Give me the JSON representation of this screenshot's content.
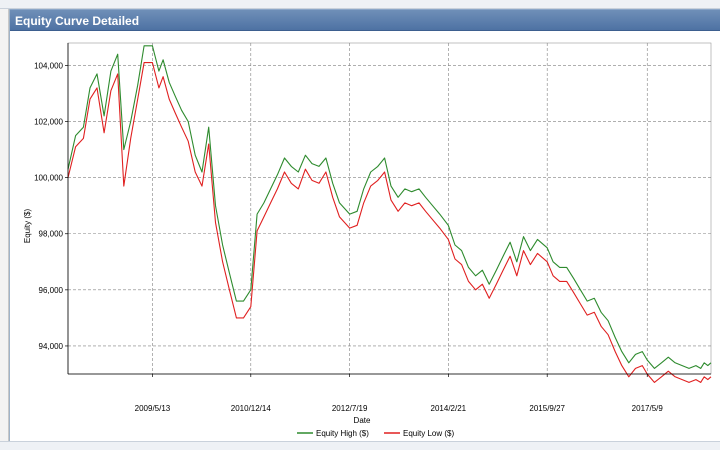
{
  "window": {
    "panel_title": "Equity Curve Detailed"
  },
  "colors": {
    "title_bar": "#4e72a3",
    "equity_high": "#2e8b2e",
    "equity_low": "#e02020",
    "grid": "#808080"
  },
  "chart_data": {
    "type": "line",
    "title": "",
    "xlabel": "Date",
    "ylabel": "Equity ($)",
    "x_tick_labels": [
      "2009/5/13",
      "2010/12/14",
      "2012/7/19",
      "2014/2/21",
      "2015/9/27",
      "2017/5/9"
    ],
    "y_ticks": [
      94000,
      96000,
      98000,
      100000,
      102000,
      104000
    ],
    "y_tick_labels": [
      "94,000",
      "96,000",
      "98,000",
      "100,000",
      "102,000",
      "104,000"
    ],
    "ylim": [
      93000,
      104800
    ],
    "legend": {
      "placement": "bottom-center"
    },
    "grid": true,
    "series": [
      {
        "name": "Equity High ($)",
        "x": [
          "2008/1/1",
          "2008/2/15",
          "2008/4/1",
          "2008/5/10",
          "2008/6/20",
          "2008/8/1",
          "2008/9/10",
          "2008/10/20",
          "2008/11/25",
          "2009/1/5",
          "2009/2/15",
          "2009/3/25",
          "2009/5/13",
          "2009/6/20",
          "2009/7/15",
          "2009/8/20",
          "2009/9/25",
          "2009/11/1",
          "2009/12/10",
          "2010/1/20",
          "2010/3/1",
          "2010/4/10",
          "2010/5/20",
          "2010/7/1",
          "2010/8/10",
          "2010/9/20",
          "2010/11/1",
          "2010/12/14",
          "2011/1/20",
          "2011/3/1",
          "2011/4/10",
          "2011/5/20",
          "2011/7/1",
          "2011/8/10",
          "2011/9/20",
          "2011/11/1",
          "2011/12/10",
          "2012/1/20",
          "2012/3/1",
          "2012/4/10",
          "2012/5/20",
          "2012/7/19",
          "2012/9/1",
          "2012/10/10",
          "2012/11/20",
          "2013/1/1",
          "2013/2/10",
          "2013/3/20",
          "2013/5/1",
          "2013/6/10",
          "2013/7/20",
          "2013/9/1",
          "2013/10/10",
          "2013/11/20",
          "2014/1/1",
          "2014/2/21",
          "2014/4/1",
          "2014/5/10",
          "2014/6/20",
          "2014/8/1",
          "2014/9/10",
          "2014/10/20",
          "2014/12/1",
          "2015/1/10",
          "2015/2/20",
          "2015/4/1",
          "2015/5/10",
          "2015/6/20",
          "2015/8/1",
          "2015/9/27",
          "2015/11/1",
          "2015/12/10",
          "2016/1/20",
          "2016/3/1",
          "2016/4/10",
          "2016/5/20",
          "2016/7/1",
          "2016/8/10",
          "2016/9/20",
          "2016/11/1",
          "2016/12/10",
          "2017/1/20",
          "2017/3/1",
          "2017/4/10",
          "2017/5/9",
          "2017/6/20",
          "2017/8/1",
          "2017/9/10",
          "2017/10/20",
          "2017/12/1",
          "2018/1/10",
          "2018/2/20",
          "2018/3/20",
          "2018/4/10",
          "2018/5/1",
          "2018/5/20"
        ],
        "values": [
          100300,
          101500,
          101800,
          103200,
          103700,
          102200,
          103800,
          104400,
          101000,
          102000,
          103300,
          104700,
          104700,
          103800,
          104200,
          103400,
          102900,
          102400,
          102000,
          100800,
          100200,
          101800,
          99000,
          97600,
          96600,
          95600,
          95600,
          96000,
          98700,
          99100,
          99600,
          100100,
          100700,
          100400,
          100200,
          100800,
          100500,
          100400,
          100700,
          99800,
          99100,
          98700,
          98800,
          99600,
          100200,
          100400,
          100700,
          99700,
          99300,
          99600,
          99500,
          99600,
          99300,
          99000,
          98700,
          98300,
          97600,
          97400,
          96800,
          96500,
          96700,
          96200,
          96700,
          97200,
          97700,
          97000,
          97900,
          97400,
          97800,
          97500,
          97000,
          96800,
          96800,
          96400,
          96000,
          95600,
          95700,
          95200,
          94900,
          94300,
          93800,
          93400,
          93700,
          93800,
          93500,
          93200,
          93400,
          93600,
          93400,
          93300,
          93200,
          93300,
          93200,
          93400,
          93300,
          93400
        ]
      },
      {
        "name": "Equity Low ($)",
        "x": [
          "2008/1/1",
          "2008/2/15",
          "2008/4/1",
          "2008/5/10",
          "2008/6/20",
          "2008/8/1",
          "2008/9/10",
          "2008/10/20",
          "2008/11/25",
          "2009/1/5",
          "2009/2/15",
          "2009/3/25",
          "2009/5/13",
          "2009/6/20",
          "2009/7/15",
          "2009/8/20",
          "2009/9/25",
          "2009/11/1",
          "2009/12/10",
          "2010/1/20",
          "2010/3/1",
          "2010/4/10",
          "2010/5/20",
          "2010/7/1",
          "2010/8/10",
          "2010/9/20",
          "2010/11/1",
          "2010/12/14",
          "2011/1/20",
          "2011/3/1",
          "2011/4/10",
          "2011/5/20",
          "2011/7/1",
          "2011/8/10",
          "2011/9/20",
          "2011/11/1",
          "2011/12/10",
          "2012/1/20",
          "2012/3/1",
          "2012/4/10",
          "2012/5/20",
          "2012/7/19",
          "2012/9/1",
          "2012/10/10",
          "2012/11/20",
          "2013/1/1",
          "2013/2/10",
          "2013/3/20",
          "2013/5/1",
          "2013/6/10",
          "2013/7/20",
          "2013/9/1",
          "2013/10/10",
          "2013/11/20",
          "2014/1/1",
          "2014/2/21",
          "2014/4/1",
          "2014/5/10",
          "2014/6/20",
          "2014/8/1",
          "2014/9/10",
          "2014/10/20",
          "2014/12/1",
          "2015/1/10",
          "2015/2/20",
          "2015/4/1",
          "2015/5/10",
          "2015/6/20",
          "2015/8/1",
          "2015/9/27",
          "2015/11/1",
          "2015/12/10",
          "2016/1/20",
          "2016/3/1",
          "2016/4/10",
          "2016/5/20",
          "2016/7/1",
          "2016/8/10",
          "2016/9/20",
          "2016/11/1",
          "2016/12/10",
          "2017/1/20",
          "2017/3/1",
          "2017/4/10",
          "2017/5/9",
          "2017/6/20",
          "2017/8/1",
          "2017/9/10",
          "2017/10/20",
          "2017/12/1",
          "2018/1/10",
          "2018/2/20",
          "2018/3/20",
          "2018/4/10",
          "2018/5/1",
          "2018/5/20"
        ],
        "values": [
          100000,
          101100,
          101400,
          102800,
          103200,
          101600,
          103100,
          103700,
          99700,
          101400,
          102800,
          104100,
          104100,
          103200,
          103600,
          102800,
          102300,
          101800,
          101300,
          100200,
          99700,
          101200,
          98400,
          97000,
          96000,
          95000,
          95000,
          95400,
          98100,
          98600,
          99100,
          99600,
          100200,
          99800,
          99600,
          100300,
          99900,
          99800,
          100200,
          99300,
          98600,
          98200,
          98300,
          99100,
          99700,
          99900,
          100200,
          99200,
          98800,
          99100,
          99000,
          99100,
          98800,
          98500,
          98200,
          97800,
          97100,
          96900,
          96300,
          96000,
          96200,
          95700,
          96200,
          96700,
          97200,
          96500,
          97400,
          96900,
          97300,
          97000,
          96500,
          96300,
          96300,
          95900,
          95500,
          95100,
          95200,
          94700,
          94400,
          93800,
          93300,
          92900,
          93200,
          93300,
          93000,
          92700,
          92900,
          93100,
          92900,
          92800,
          92700,
          92800,
          92700,
          92900,
          92800,
          92900
        ]
      }
    ]
  }
}
